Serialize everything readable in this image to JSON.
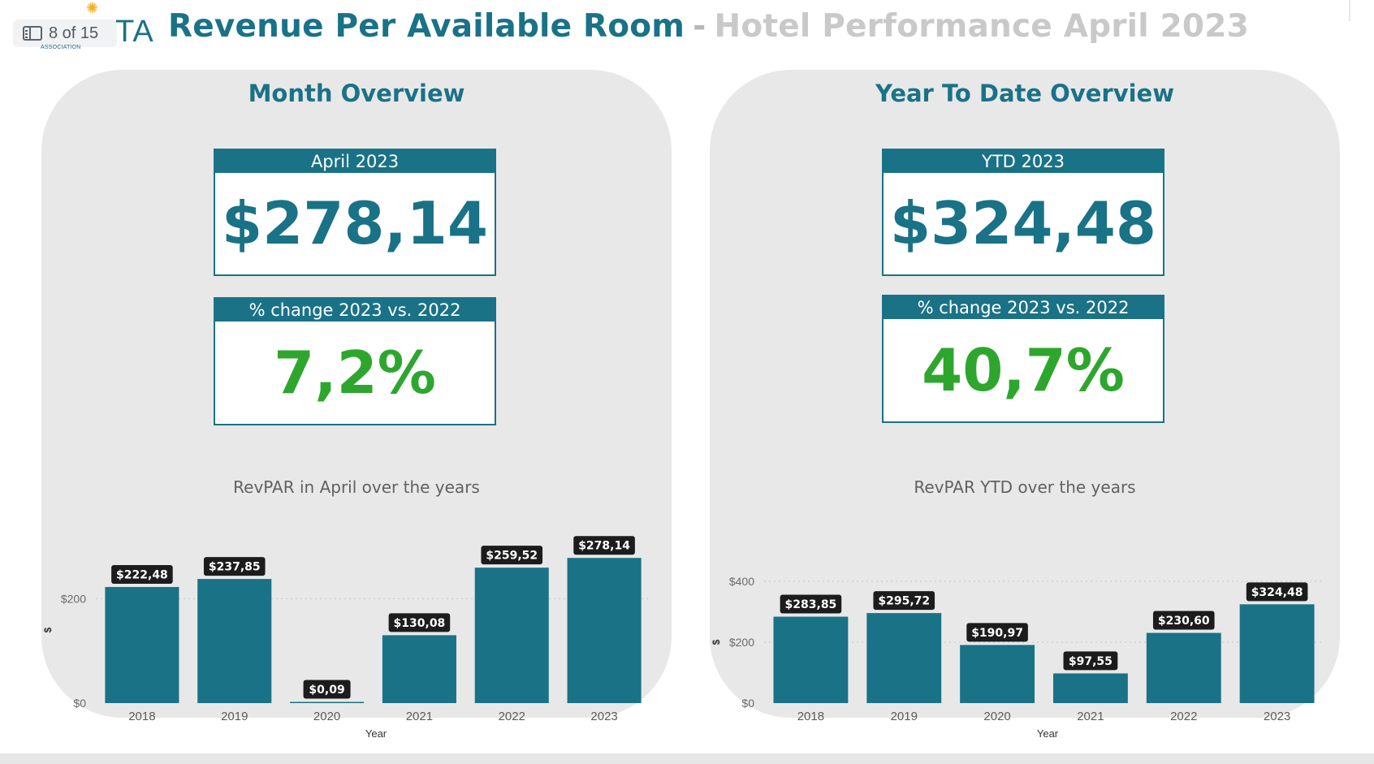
{
  "header": {
    "page_counter": "8 of 15",
    "logo_text": "TA",
    "logo_subtext": "ASSOCIATION",
    "title_main": "Revenue Per Available Room",
    "title_dash": "-",
    "title_sub": "Hotel Performance April 2023"
  },
  "month": {
    "panel_title": "Month Overview",
    "kpi1_label": "April 2023",
    "kpi1_value": "$278,14",
    "kpi2_label": "% change 2023 vs. 2022",
    "kpi2_value": "7,2%",
    "chart_title": "RevPAR in April over the years"
  },
  "ytd": {
    "panel_title": "Year To Date Overview",
    "kpi1_label": "YTD 2023",
    "kpi1_value": "$324,48",
    "kpi2_label": "% change 2023 vs. 2022",
    "kpi2_value": "40,7%",
    "chart_title": "RevPAR YTD over the years"
  },
  "colors": {
    "teal": "#1a7287",
    "green": "#2ea62e",
    "panel_bg": "#e8e8e8",
    "label_bg": "#1c1c1c"
  },
  "chart_data": [
    {
      "type": "bar",
      "title": "RevPAR in April over the years",
      "xlabel": "Year",
      "ylabel": "$",
      "categories": [
        "2018",
        "2019",
        "2020",
        "2021",
        "2022",
        "2023"
      ],
      "values": [
        222.48,
        237.85,
        0.09,
        130.08,
        259.52,
        278.14
      ],
      "data_labels": [
        "$222,48",
        "$237,85",
        "$0,09",
        "$130,08",
        "$259,52",
        "$278,14"
      ],
      "yticks": [
        0,
        200
      ],
      "ytick_labels": [
        "$0",
        "$200"
      ],
      "ylim": [
        0,
        280
      ],
      "grid": true
    },
    {
      "type": "bar",
      "title": "RevPAR YTD over the years",
      "xlabel": "Year",
      "ylabel": "$",
      "categories": [
        "2018",
        "2019",
        "2020",
        "2021",
        "2022",
        "2023"
      ],
      "values": [
        283.85,
        295.72,
        190.97,
        97.55,
        230.6,
        324.48
      ],
      "data_labels": [
        "$283,85",
        "$295,72",
        "$190,97",
        "$97,55",
        "$230,60",
        "$324,48"
      ],
      "yticks": [
        0,
        200,
        400
      ],
      "ytick_labels": [
        "$0",
        "$200",
        "$400"
      ],
      "ylim": [
        0,
        400
      ],
      "grid": true
    }
  ]
}
